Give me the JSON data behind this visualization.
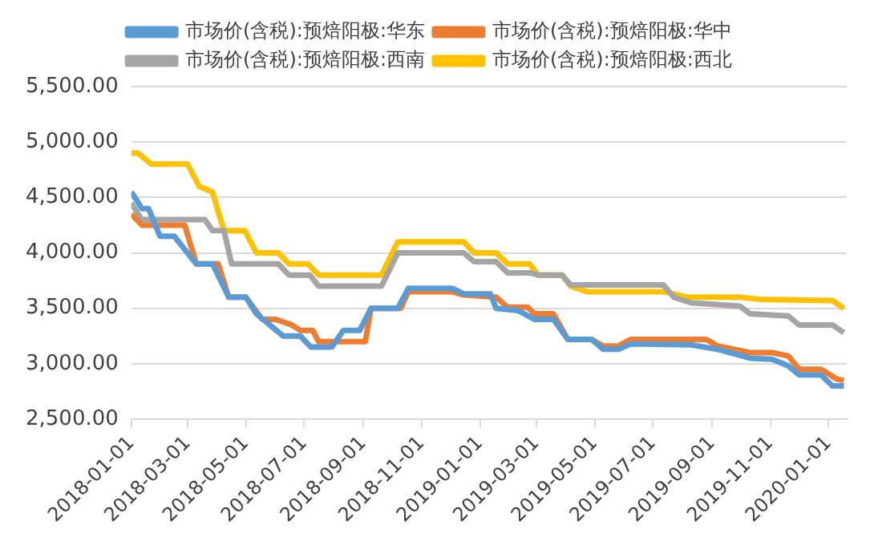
{
  "chart_data": {
    "type": "line",
    "legend": "top",
    "grid": "y",
    "marker": "none",
    "line_style": "solid",
    "xlim": [
      "2018-01-01",
      "2020-01-20"
    ],
    "xticks": [
      "2018-01-01",
      "2018-03-01",
      "2018-05-01",
      "2018-07-01",
      "2018-09-01",
      "2018-11-01",
      "2019-01-01",
      "2019-03-01",
      "2019-05-01",
      "2019-07-01",
      "2019-09-01",
      "2019-11-01",
      "2020-01-01"
    ],
    "ylim": [
      2500,
      5500
    ],
    "yticks": [
      {
        "value": 2500,
        "label": "2,500.00"
      },
      {
        "value": 3000,
        "label": "3,000.00"
      },
      {
        "value": 3500,
        "label": "3,500.00"
      },
      {
        "value": 4000,
        "label": "4,000.00"
      },
      {
        "value": 4500,
        "label": "4,500.00"
      },
      {
        "value": 5000,
        "label": "5,000.00"
      },
      {
        "value": 5500,
        "label": "5,500.00"
      }
    ],
    "series": [
      {
        "name": "市场价(含税):预焙阳极:华东",
        "color": "#5b9bd5",
        "x": [
          "2018-01-01",
          "2018-01-12",
          "2018-01-19",
          "2018-01-31",
          "2018-02-15",
          "2018-03-10",
          "2018-03-27",
          "2018-04-13",
          "2018-05-01",
          "2018-05-12",
          "2018-06-09",
          "2018-06-27",
          "2018-07-08",
          "2018-07-30",
          "2018-08-11",
          "2018-08-28",
          "2018-09-09",
          "2018-10-07",
          "2018-10-18",
          "2018-12-03",
          "2018-12-15",
          "2019-01-12",
          "2019-01-18",
          "2019-02-10",
          "2019-02-27",
          "2019-03-19",
          "2019-04-03",
          "2019-04-28",
          "2019-05-10",
          "2019-05-26",
          "2019-06-08",
          "2019-08-10",
          "2019-09-07",
          "2019-10-11",
          "2019-11-03",
          "2019-11-20",
          "2019-12-01",
          "2019-12-24",
          "2020-01-05",
          "2020-01-17"
        ],
        "values": [
          4550,
          4400,
          4400,
          4150,
          4150,
          3900,
          3900,
          3600,
          3600,
          3450,
          3250,
          3250,
          3150,
          3150,
          3300,
          3300,
          3500,
          3500,
          3680,
          3680,
          3630,
          3630,
          3500,
          3480,
          3400,
          3400,
          3220,
          3220,
          3130,
          3130,
          3180,
          3170,
          3130,
          3050,
          3040,
          2980,
          2900,
          2900,
          2800,
          2800
        ]
      },
      {
        "name": "市场价(含税):预焙阳极:华中",
        "color": "#ed7d31",
        "x": [
          "2018-01-01",
          "2018-01-12",
          "2018-02-26",
          "2018-03-10",
          "2018-04-02",
          "2018-04-13",
          "2018-05-01",
          "2018-05-18",
          "2018-06-01",
          "2018-06-18",
          "2018-06-27",
          "2018-07-10",
          "2018-07-16",
          "2018-09-03",
          "2018-09-09",
          "2018-10-10",
          "2018-10-18",
          "2018-12-03",
          "2018-12-15",
          "2019-01-18",
          "2019-01-30",
          "2019-02-20",
          "2019-02-27",
          "2019-03-19",
          "2019-04-03",
          "2019-04-28",
          "2019-05-10",
          "2019-05-26",
          "2019-06-08",
          "2019-08-26",
          "2019-09-07",
          "2019-10-11",
          "2019-11-03",
          "2019-11-20",
          "2019-12-01",
          "2019-12-24",
          "2020-01-10",
          "2020-01-17"
        ],
        "values": [
          4350,
          4250,
          4250,
          3900,
          3900,
          3600,
          3600,
          3400,
          3400,
          3350,
          3300,
          3300,
          3200,
          3200,
          3500,
          3500,
          3650,
          3650,
          3620,
          3600,
          3510,
          3510,
          3450,
          3450,
          3220,
          3220,
          3160,
          3160,
          3220,
          3220,
          3160,
          3100,
          3100,
          3070,
          2950,
          2950,
          2860,
          2850
        ]
      },
      {
        "name": "市场价(含税):预焙阳极:西南",
        "color": "#a5a5a5",
        "x": [
          "2018-01-01",
          "2018-01-12",
          "2018-03-19",
          "2018-03-27",
          "2018-04-08",
          "2018-04-16",
          "2018-06-04",
          "2018-06-15",
          "2018-07-07",
          "2018-07-16",
          "2018-09-20",
          "2018-10-07",
          "2018-12-15",
          "2018-12-26",
          "2019-01-18",
          "2019-01-30",
          "2019-02-22",
          "2019-03-03",
          "2019-03-28",
          "2019-04-06",
          "2019-07-12",
          "2019-07-23",
          "2019-08-10",
          "2019-09-30",
          "2019-10-11",
          "2019-11-20",
          "2019-12-01",
          "2020-01-05",
          "2020-01-17"
        ],
        "values": [
          4450,
          4300,
          4300,
          4200,
          4200,
          3900,
          3900,
          3800,
          3800,
          3700,
          3700,
          4000,
          4000,
          3920,
          3920,
          3820,
          3820,
          3800,
          3800,
          3710,
          3710,
          3600,
          3550,
          3520,
          3450,
          3430,
          3350,
          3350,
          3280
        ]
      },
      {
        "name": "市场价(含税):预焙阳极:西北",
        "color": "#ffc000",
        "x": [
          "2018-01-01",
          "2018-01-08",
          "2018-01-22",
          "2018-03-01",
          "2018-03-13",
          "2018-03-27",
          "2018-04-08",
          "2018-04-30",
          "2018-05-12",
          "2018-06-04",
          "2018-06-15",
          "2018-07-05",
          "2018-07-16",
          "2018-09-20",
          "2018-10-07",
          "2018-12-15",
          "2018-12-26",
          "2019-01-18",
          "2019-01-30",
          "2019-02-22",
          "2019-03-03",
          "2019-03-28",
          "2019-04-06",
          "2019-04-23",
          "2019-07-12",
          "2019-08-07",
          "2019-09-30",
          "2019-10-22",
          "2020-01-05",
          "2020-01-17"
        ],
        "values": [
          4900,
          4900,
          4800,
          4800,
          4600,
          4550,
          4200,
          4200,
          4000,
          4000,
          3900,
          3900,
          3800,
          3800,
          4100,
          4100,
          4000,
          4000,
          3900,
          3900,
          3800,
          3800,
          3700,
          3650,
          3650,
          3600,
          3600,
          3580,
          3570,
          3500
        ]
      }
    ]
  }
}
